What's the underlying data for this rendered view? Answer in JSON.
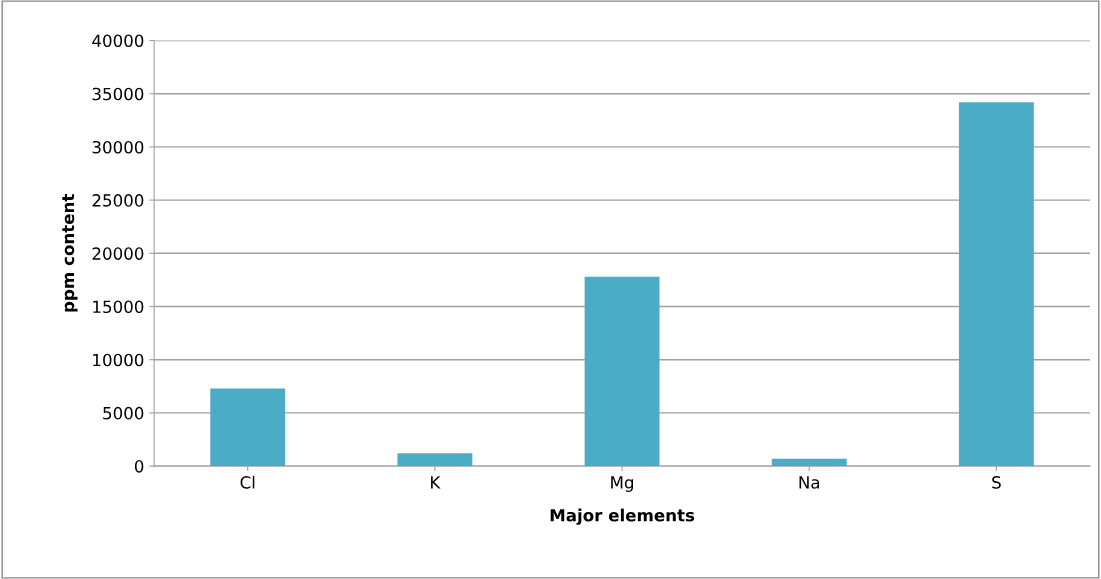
{
  "chart_data": {
    "type": "bar",
    "xlabel": "Major elements",
    "ylabel": "ppm content",
    "categories": [
      "Cl",
      "K",
      "Mg",
      "Na",
      "S"
    ],
    "values": [
      7300,
      1200,
      17800,
      700,
      34200
    ],
    "color": "#4bacc6",
    "ylim": [
      0,
      40000
    ],
    "yticks": [
      0,
      5000,
      10000,
      15000,
      20000,
      25000,
      30000,
      35000,
      40000
    ],
    "grid": "y"
  }
}
